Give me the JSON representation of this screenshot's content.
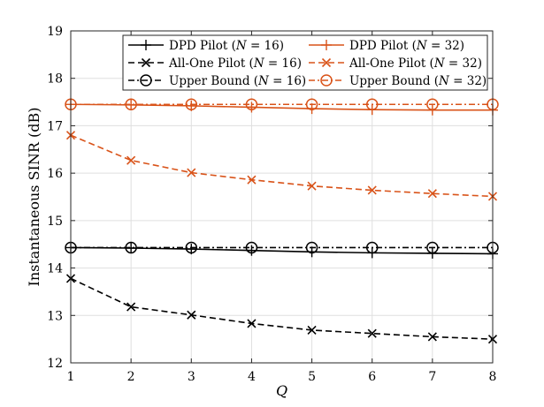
{
  "chart_data": {
    "type": "line",
    "title": "",
    "xlabel": "Q",
    "ylabel": "Instantaneous SINR (dB)",
    "xlim": [
      1,
      8
    ],
    "ylim": [
      12,
      19
    ],
    "xticks": [
      1,
      2,
      3,
      4,
      5,
      6,
      7,
      8
    ],
    "yticks": [
      12,
      13,
      14,
      15,
      16,
      17,
      18,
      19
    ],
    "grid": true,
    "legend_position": "top",
    "x": [
      1,
      2,
      3,
      4,
      5,
      6,
      7,
      8
    ],
    "series": [
      {
        "name": "DPD Pilot (N = 16)",
        "label_text": "DPD Pilot (",
        "label_var": "N",
        "label_tail": " = 16)",
        "color": "#000000",
        "dash": "solid",
        "marker": "plus",
        "values": [
          14.43,
          14.42,
          14.4,
          14.37,
          14.34,
          14.32,
          14.31,
          14.3
        ]
      },
      {
        "name": "DPD Pilot (N = 32)",
        "label_text": "DPD Pilot (",
        "label_var": "N",
        "label_tail": " = 32)",
        "color": "#D95319",
        "dash": "solid",
        "marker": "plus",
        "values": [
          17.45,
          17.44,
          17.42,
          17.39,
          17.36,
          17.34,
          17.33,
          17.33
        ]
      },
      {
        "name": "All-One Pilot (N = 16)",
        "label_text": "All-One Pilot (",
        "label_var": "N",
        "label_tail": " = 16)",
        "color": "#000000",
        "dash": "dashed",
        "marker": "x",
        "values": [
          13.78,
          13.18,
          13.01,
          12.83,
          12.69,
          12.62,
          12.55,
          12.5
        ]
      },
      {
        "name": "All-One Pilot (N = 32)",
        "label_text": "All-One Pilot (",
        "label_var": "N",
        "label_tail": " = 32)",
        "color": "#D95319",
        "dash": "dashed",
        "marker": "x",
        "values": [
          16.8,
          16.27,
          16.01,
          15.86,
          15.73,
          15.64,
          15.57,
          15.51
        ]
      },
      {
        "name": "Upper Bound (N = 16)",
        "label_text": "Upper Bound (",
        "label_var": "N",
        "label_tail": " = 16)",
        "color": "#000000",
        "dash": "dashdot",
        "marker": "circle",
        "values": [
          14.43,
          14.43,
          14.43,
          14.43,
          14.43,
          14.43,
          14.43,
          14.43
        ]
      },
      {
        "name": "Upper Bound (N = 32)",
        "label_text": "Upper Bound (",
        "label_var": "N",
        "label_tail": " = 32)",
        "color": "#D95319",
        "dash": "dashdot",
        "marker": "circle",
        "values": [
          17.45,
          17.45,
          17.45,
          17.45,
          17.45,
          17.45,
          17.45,
          17.45
        ]
      }
    ]
  }
}
